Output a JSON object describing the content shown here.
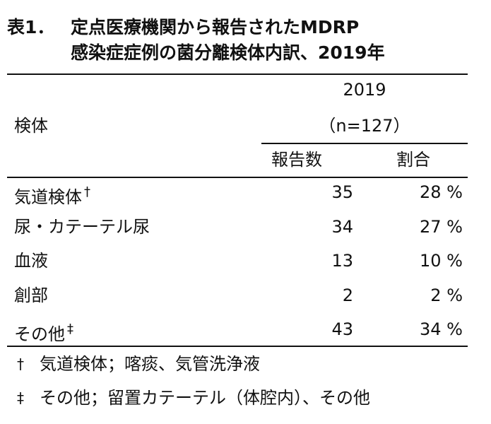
{
  "header": {
    "label": "表1．",
    "title": [
      "定点医療機関から報告されたMDRP",
      "感染症症例の菌分離検体内訳、2019年"
    ]
  },
  "table": {
    "year": "2019",
    "n": "（n=127）",
    "columns": [
      "検体",
      "報告数",
      "割合"
    ],
    "rows": [
      {
        "name": "気道検体",
        "mark": "†",
        "count": 35,
        "percent": "28 %"
      },
      {
        "name": "尿・カテーテル尿",
        "count": 34,
        "percent": "27 %"
      },
      {
        "name": "血液",
        "count": 13,
        "percent": "10 %"
      },
      {
        "name": "創部",
        "count": 2,
        "percent": "2 %"
      },
      {
        "name": "その他",
        "mark": "‡",
        "count": 43,
        "percent": "34 %"
      }
    ]
  },
  "footnotes": [
    {
      "mark": "†",
      "text": "気道検体；喀痰、気管洗浄液"
    },
    {
      "mark": "‡",
      "text": "その他；留置カテーテル（体腔内）、その他"
    }
  ]
}
